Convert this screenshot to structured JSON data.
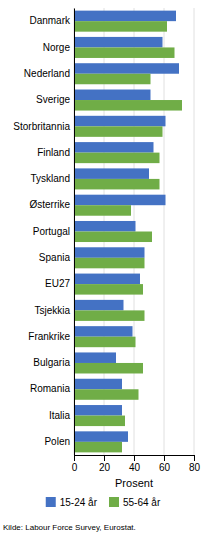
{
  "chart_data": {
    "type": "bar",
    "orientation": "horizontal",
    "categories": [
      "Danmark",
      "Norge",
      "Nederland",
      "Sverige",
      "Storbritannia",
      "Finland",
      "Tyskland",
      "Østerrike",
      "Portugal",
      "Spania",
      "EU27",
      "Tsjekkia",
      "Frankrike",
      "Bulgaria",
      "Romania",
      "Italia",
      "Polen"
    ],
    "series": [
      {
        "name": "15-24 år",
        "color": "#4472C4",
        "values": [
          68,
          59,
          70,
          51,
          61,
          53,
          50,
          61,
          41,
          47,
          44,
          33,
          39,
          28,
          32,
          32,
          36
        ]
      },
      {
        "name": "55-64 år",
        "color": "#70AD47",
        "values": [
          62,
          67,
          51,
          72,
          59,
          57,
          57,
          38,
          52,
          47,
          46,
          47,
          41,
          46,
          43,
          34,
          32
        ]
      }
    ],
    "x_label": "Prosent",
    "xlim": [
      0,
      80
    ],
    "xticks": [
      0,
      20,
      40,
      60,
      80
    ],
    "grid": true,
    "legend": "bottom",
    "annotations": [
      "Kilde: Labour Force Survey, Eurostat."
    ]
  }
}
